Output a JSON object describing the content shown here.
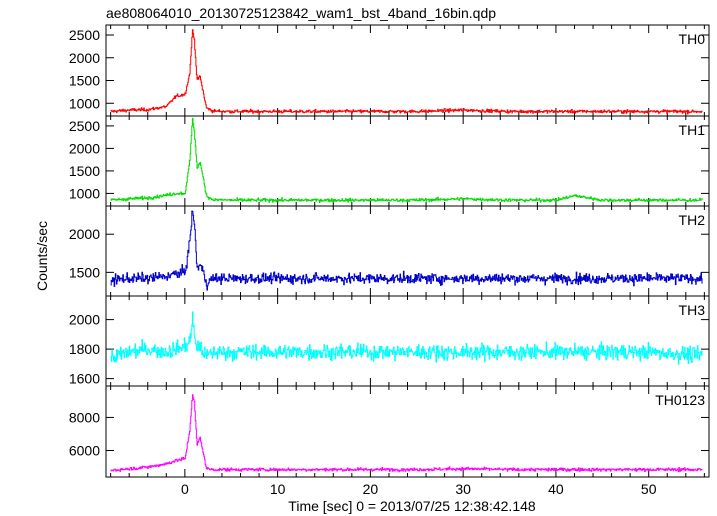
{
  "chart_data": {
    "type": "line",
    "title": "ae808064010_20130725123842_wam1_bst_4band_16bin.qdp",
    "xlabel": "Time [sec] 0 = 2013/07/25 12:38:42.148",
    "ylabel": "Counts/sec",
    "xlim": [
      -8.5,
      56.5
    ],
    "xticks": [
      0,
      10,
      20,
      30,
      40,
      50
    ],
    "grid": false,
    "legend": "none",
    "series": [
      {
        "name": "TH0",
        "color": "#ff0000",
        "ylim": [
          720,
          2720
        ],
        "yticks": [
          1000,
          1500,
          2000,
          2500
        ],
        "x": [
          -8,
          -6,
          -4,
          -2,
          -1,
          0,
          0.5,
          0.8,
          1.0,
          1.3,
          1.6,
          2.0,
          2.3,
          3,
          5,
          10,
          15,
          20,
          25,
          30,
          35,
          40,
          45,
          50,
          55
        ],
        "values": [
          820,
          850,
          860,
          930,
          1150,
          1200,
          1650,
          2600,
          2400,
          1500,
          1600,
          1200,
          900,
          830,
          820,
          820,
          820,
          820,
          820,
          850,
          820,
          820,
          820,
          820,
          820
        ]
      },
      {
        "name": "TH1",
        "color": "#00dd00",
        "ylim": [
          720,
          2720
        ],
        "yticks": [
          1000,
          1500,
          2000,
          2500
        ],
        "x": [
          -8,
          -6,
          -4,
          -2,
          -1,
          0,
          0.5,
          0.8,
          1.0,
          1.3,
          1.6,
          2.0,
          2.3,
          3,
          5,
          10,
          15,
          20,
          25,
          30,
          35,
          40,
          42,
          45,
          50,
          55
        ],
        "values": [
          850,
          880,
          900,
          960,
          1000,
          1000,
          1700,
          2650,
          2400,
          1550,
          1700,
          1300,
          950,
          860,
          850,
          850,
          850,
          850,
          850,
          880,
          850,
          850,
          950,
          850,
          850,
          850
        ]
      },
      {
        "name": "TH2",
        "color": "#0000cc",
        "ylim": [
          1190,
          2370
        ],
        "yticks": [
          1500,
          2000
        ],
        "x": [
          -8,
          -6,
          -4,
          -2,
          -1,
          0,
          0.5,
          0.8,
          1.0,
          1.3,
          1.6,
          2.0,
          2.3,
          3,
          5,
          10,
          15,
          20,
          25,
          30,
          35,
          40,
          45,
          50,
          55
        ],
        "values": [
          1400,
          1420,
          1420,
          1450,
          1480,
          1500,
          1900,
          2300,
          2150,
          1550,
          1600,
          1500,
          1350,
          1420,
          1420,
          1420,
          1420,
          1420,
          1420,
          1420,
          1420,
          1420,
          1420,
          1420,
          1420
        ]
      },
      {
        "name": "TH3",
        "color": "#00ffff",
        "ylim": [
          1550,
          2160
        ],
        "yticks": [
          1600,
          1800,
          2000
        ],
        "x": [
          -8,
          -6,
          -4,
          -2,
          -1,
          0,
          0.5,
          0.8,
          1.0,
          1.3,
          1.6,
          2.0,
          2.3,
          3,
          5,
          10,
          15,
          20,
          25,
          30,
          35,
          40,
          45,
          50,
          55
        ],
        "values": [
          1740,
          1780,
          1800,
          1780,
          1800,
          1820,
          1850,
          2000,
          1900,
          1800,
          1820,
          1780,
          1750,
          1780,
          1780,
          1780,
          1780,
          1780,
          1780,
          1780,
          1780,
          1780,
          1780,
          1780,
          1760
        ]
      },
      {
        "name": "TH0123",
        "color": "#ff00ff",
        "ylim": [
          4400,
          9900
        ],
        "yticks": [
          6000,
          8000
        ],
        "x": [
          -8,
          -6,
          -4,
          -2,
          -1,
          0,
          0.5,
          0.8,
          1.0,
          1.3,
          1.6,
          2.0,
          2.3,
          3,
          5,
          10,
          15,
          20,
          25,
          30,
          35,
          40,
          45,
          50,
          55
        ],
        "values": [
          4800,
          4900,
          5000,
          5200,
          5400,
          5500,
          7200,
          9400,
          8900,
          6300,
          6800,
          5800,
          4900,
          4850,
          4850,
          4850,
          4850,
          4850,
          4850,
          4900,
          4850,
          4850,
          4850,
          4850,
          4850
        ]
      }
    ]
  }
}
